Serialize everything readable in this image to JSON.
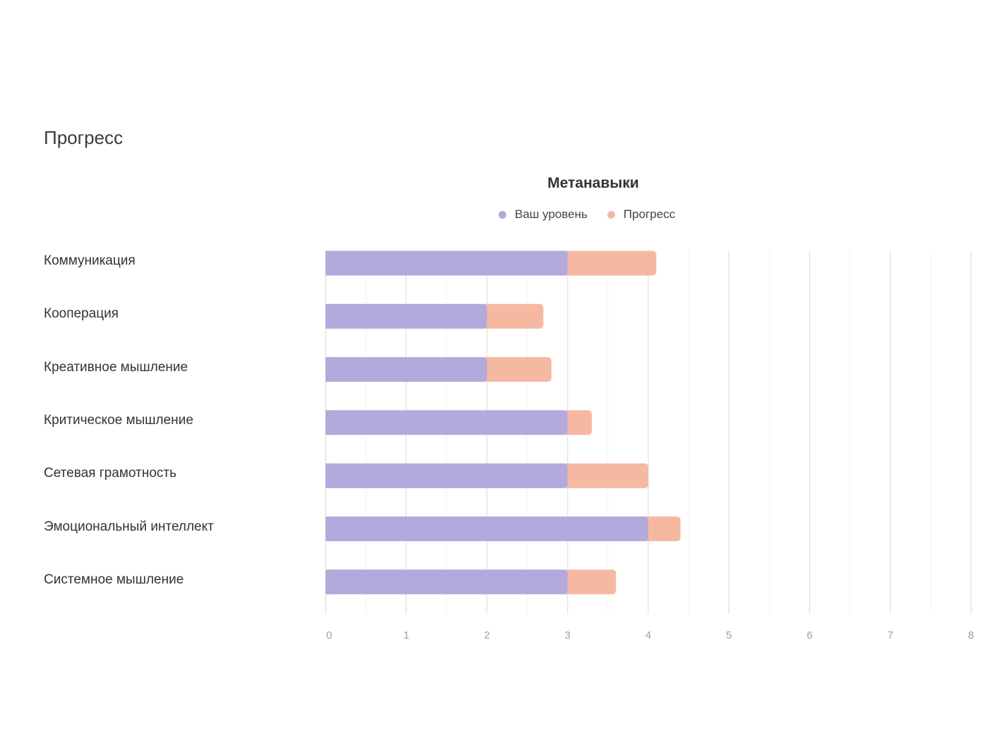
{
  "page": {
    "title": "Прогресс"
  },
  "colors": {
    "level": "#b3a9dc",
    "progress": "#f5b9a2",
    "grid": "#ececec",
    "tick": "#9e9e9e"
  },
  "chart_data": {
    "type": "bar",
    "orientation": "horizontal",
    "stacked": true,
    "title": "Метанавыки",
    "legend_position": "top",
    "categories": [
      "Коммуникация",
      "Кооперация",
      "Креативное мышление",
      "Критическое мышление",
      "Сетевая грамотность",
      "Эмоциональный интеллект",
      "Системное мышление"
    ],
    "series": [
      {
        "name": "Ваш уровень",
        "color": "#b3a9dc",
        "values": [
          3,
          2,
          2,
          3,
          3,
          4,
          3
        ]
      },
      {
        "name": "Прогресс",
        "color": "#f5b9a2",
        "values": [
          1.1,
          0.7,
          0.8,
          0.3,
          1.0,
          0.4,
          0.6
        ]
      }
    ],
    "xlim": [
      0,
      8
    ],
    "xticks": [
      "0",
      "1",
      "2",
      "3",
      "4",
      "5",
      "6",
      "7",
      "8"
    ],
    "grid": true
  }
}
